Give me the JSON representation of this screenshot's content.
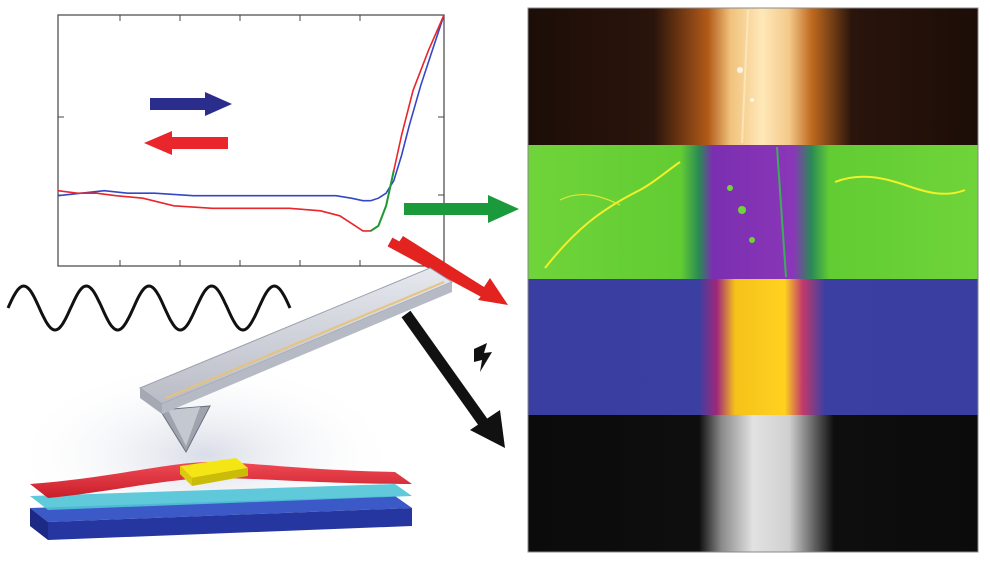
{
  "colors": {
    "approach_trace": "#3347c8",
    "retract_trace": "#e8262c",
    "contact_segment": "#1e9a35",
    "to_panel_topography": "#1b9a3c",
    "to_panel_phase": "#e2231f",
    "to_panel_electrical": "#111111",
    "panel_topography_bg": "#2a140c",
    "panel_phase_bg": "#66d135",
    "panel_phase_strip": "#7a2fb0",
    "panel_amplitude_bg": "#3a3ea0",
    "panel_amplitude_strip": "#f5c21a",
    "panel_current_bg": "#0c0c0c",
    "panel_current_strip": "#d8d8d8",
    "sample_film_red": "#e12d3a",
    "sample_layer_cyan": "#4fc3d6",
    "substrate_blue": "#2536a0",
    "nanostructure_yellow": "#f3e614"
  },
  "icons": {
    "forward_arrow": "arrow-right-icon",
    "backward_arrow": "arrow-left-icon",
    "excitation_wave": "sine-wave-icon",
    "electrical_signal": "lightning-bolt-icon"
  },
  "chart_data": {
    "type": "line",
    "title": "",
    "xlabel": "",
    "ylabel": "",
    "xlim": [
      0,
      1
    ],
    "ylim": [
      0,
      1
    ],
    "grid": false,
    "legend": "none",
    "series": [
      {
        "x": [
          0,
          0.06,
          0.12,
          0.18,
          0.25,
          0.35,
          0.45,
          0.55,
          0.65,
          0.72,
          0.76,
          0.79,
          0.81,
          0.83,
          0.85,
          0.87,
          0.89,
          0.91,
          0.94,
          0.97,
          1.0
        ],
        "y": [
          0.28,
          0.29,
          0.3,
          0.29,
          0.29,
          0.28,
          0.28,
          0.28,
          0.28,
          0.28,
          0.27,
          0.26,
          0.26,
          0.27,
          0.29,
          0.34,
          0.44,
          0.56,
          0.72,
          0.86,
          1.0
        ]
      },
      {
        "x": [
          0,
          0.05,
          0.1,
          0.15,
          0.22,
          0.3,
          0.4,
          0.5,
          0.6,
          0.68,
          0.73,
          0.77,
          0.79,
          0.81,
          0.83,
          0.85,
          0.87,
          0.89,
          0.92,
          0.96,
          1.0
        ],
        "y": [
          0.3,
          0.29,
          0.29,
          0.28,
          0.27,
          0.24,
          0.23,
          0.23,
          0.23,
          0.22,
          0.2,
          0.16,
          0.14,
          0.14,
          0.16,
          0.24,
          0.38,
          0.52,
          0.7,
          0.86,
          1.0
        ]
      }
    ]
  }
}
